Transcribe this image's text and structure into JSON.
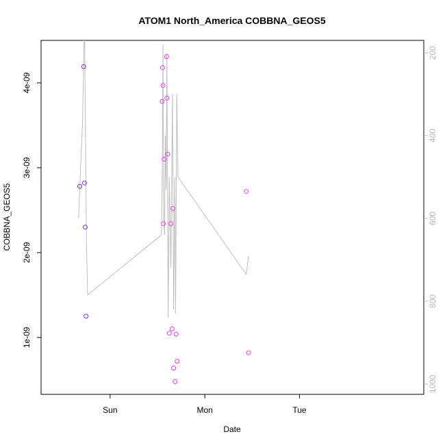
{
  "chart_data": {
    "type": "scatter",
    "title": "ATOM1 North_America COBBNA_GEOS5",
    "xlabel": "Date",
    "ylabel": "COBBNA_GEOS5",
    "x_axis": {
      "range_hours": [
        -17.5,
        79.5
      ],
      "ticks": [
        {
          "label": "Sun",
          "at_hours": 0
        },
        {
          "label": "Mon",
          "at_hours": 24
        },
        {
          "label": "Tue",
          "at_hours": 48
        }
      ]
    },
    "y_axis": {
      "range": [
        3.3e-10,
        4.5e-09
      ],
      "ticks": [
        {
          "label": "1e-09",
          "value": 1e-09
        },
        {
          "label": "2e-09",
          "value": 2e-09
        },
        {
          "label": "3e-09",
          "value": 3e-09
        },
        {
          "label": "4e-09",
          "value": 4e-09
        }
      ]
    },
    "y2_axis": {
      "reversed": true,
      "range": [
        1025,
        170
      ],
      "ticks": [
        {
          "label": "200",
          "value": 200
        },
        {
          "label": "400",
          "value": 400
        },
        {
          "label": "600",
          "value": 600
        },
        {
          "label": "800",
          "value": 800
        },
        {
          "label": "1000",
          "value": 1000
        }
      ]
    },
    "grid": false,
    "colors": {
      "series_early": "#7a2be8",
      "series_later": "#e83ce8",
      "pressure_line": "#bdbdbd"
    },
    "series": [
      {
        "kind": "points",
        "color": "#7a2be8",
        "x": [
          -7.7,
          -6.7,
          -6.5,
          -6.3,
          -6.1
        ],
        "y": [
          2.78e-09,
          4.19e-09,
          2.82e-09,
          2.3e-09,
          1.25e-09
        ]
      },
      {
        "kind": "points",
        "color": "#e83ce8",
        "x": [
          13.2,
          13.3,
          13.4,
          13.5,
          13.7,
          14.3,
          14.4,
          14.6,
          15.0,
          15.4,
          15.7,
          15.9,
          16.1,
          16.5,
          16.7,
          17.0,
          34.5,
          35.1
        ],
        "y": [
          3.78e-09,
          4.18e-09,
          3.97e-09,
          2.34e-09,
          3.1e-09,
          4.31e-09,
          3.82e-09,
          3.16e-09,
          1.05e-09,
          2.34e-09,
          1.1e-09,
          2.52e-09,
          6.4e-10,
          4.8e-10,
          1.04e-09,
          7.2e-10,
          2.72e-09,
          8.2e-10
        ]
      },
      {
        "kind": "line",
        "axis": "y2",
        "color": "#bdbdbd",
        "x": [
          -8.0,
          -7.0,
          -6.5,
          -6.0,
          -5.7,
          13.0,
          13.2,
          13.4,
          13.6,
          13.8,
          14.0,
          14.2,
          14.4,
          14.7,
          15.0,
          15.4,
          15.8,
          16.1,
          16.4,
          16.6,
          16.9,
          17.2,
          34.5,
          35.1
        ],
        "y": [
          600,
          370,
          120,
          660,
          785,
          640,
          520,
          180,
          600,
          640,
          400,
          530,
          200,
          840,
          500,
          720,
          300,
          820,
          500,
          830,
          300,
          500,
          735,
          690
        ]
      }
    ]
  }
}
